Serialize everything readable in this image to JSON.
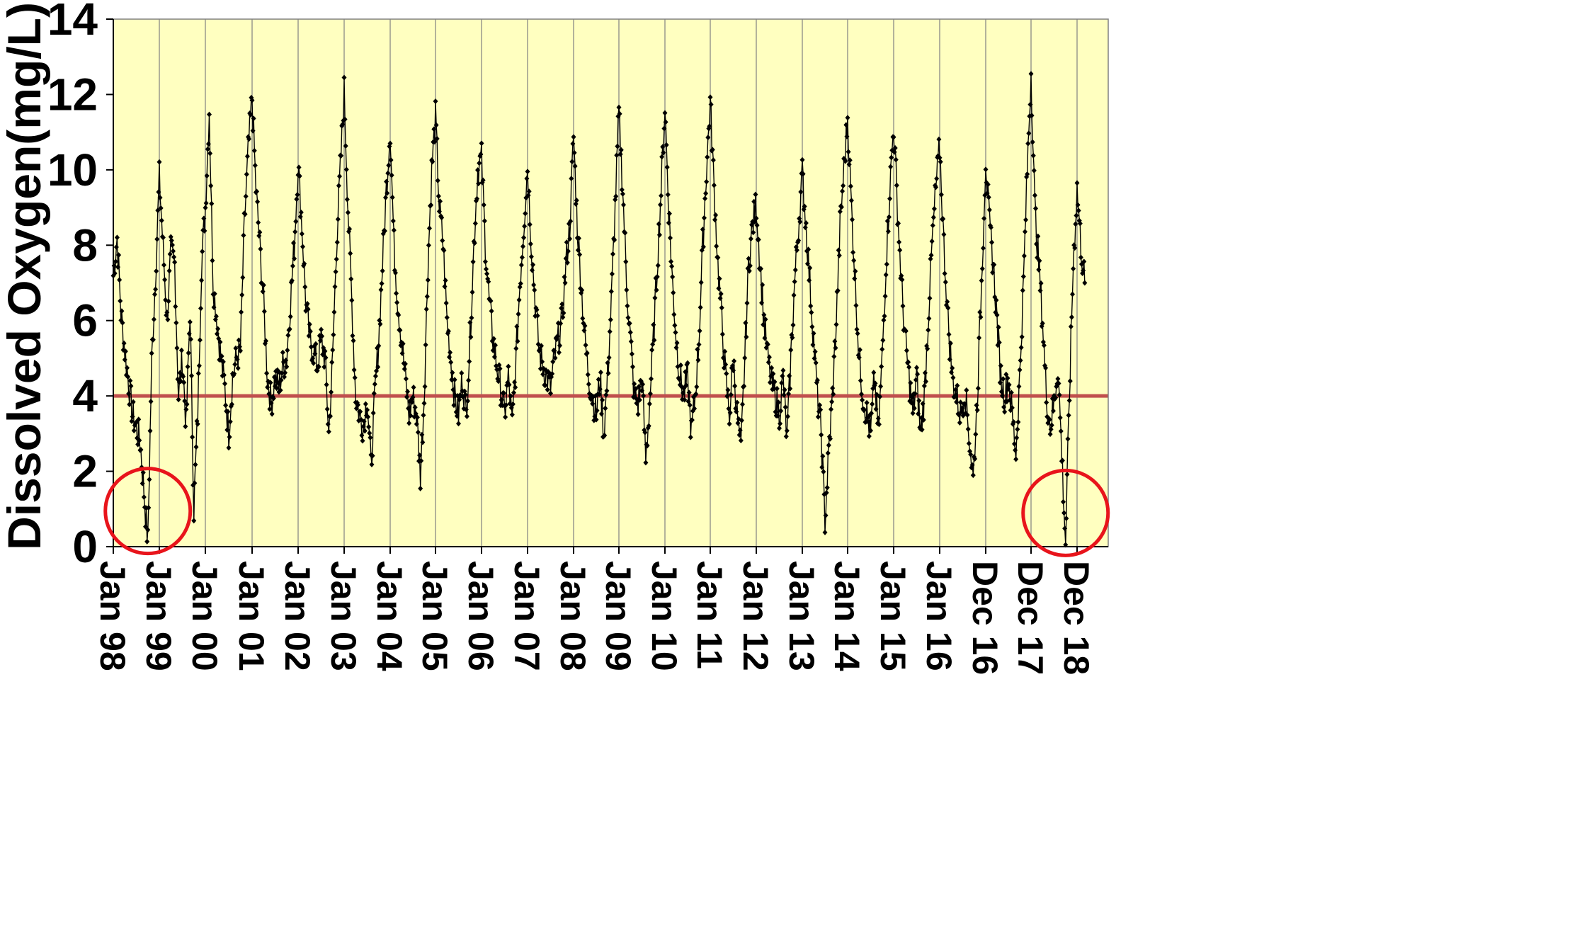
{
  "chart_data": {
    "type": "line",
    "ylabel": "Dissolved Oxygen(mg/L)",
    "xlabel": "",
    "title": "",
    "ylim": [
      0,
      14
    ],
    "yticks": [
      0,
      2,
      4,
      6,
      8,
      10,
      12,
      14
    ],
    "grid": "vertical gridlines at each year tick",
    "x_tick_labels": [
      "Jan 98",
      "Jan 99",
      "Jan 00",
      "Jan 01",
      "Jan 02",
      "Jan 03",
      "Jan 04",
      "Jan 05",
      "Jan 06",
      "Jan 07",
      "Jan 08",
      "Jan 09",
      "Jan 10",
      "Jan 11",
      "Jan 12",
      "Jan 13",
      "Jan 14",
      "Jan 15",
      "Jan 16",
      "Dec 16",
      "Dec 17",
      "Dec 18"
    ],
    "threshold": {
      "value": 4,
      "color": "#c0504d"
    },
    "highlighted_minima": [
      {
        "x": "Oct 98",
        "y": 0.1
      },
      {
        "x": "Sep 18",
        "y": 0.05
      }
    ],
    "series": [
      {
        "marker": "diamond",
        "color": "#000000",
        "description_points": [
          [
            "1998-01",
            7.2
          ],
          [
            "1998-02",
            8.2
          ],
          [
            "1998-03",
            6.2
          ],
          [
            "1998-04",
            5.2
          ],
          [
            "1998-06",
            3.5
          ],
          [
            "1998-08",
            2.8
          ],
          [
            "1998-10",
            0.1
          ],
          [
            "1998-11",
            4.9
          ],
          [
            "1998-12",
            7.2
          ],
          [
            "1999-01",
            9.8
          ],
          [
            "1999-03",
            6.0
          ],
          [
            "1999-04",
            7.8
          ],
          [
            "1999-05",
            7.5
          ],
          [
            "1999-06",
            4.0
          ],
          [
            "1999-07",
            5.0
          ],
          [
            "1999-08",
            3.2
          ],
          [
            "1999-09",
            6.3
          ],
          [
            "1999-10",
            1.0
          ],
          [
            "1999-11",
            3.5
          ],
          [
            "1999-12",
            7.5
          ],
          [
            "2000-01",
            9.0
          ],
          [
            "2000-02",
            11.6
          ],
          [
            "2000-03",
            7.0
          ],
          [
            "2000-04",
            6.0
          ],
          [
            "2000-05",
            5.0
          ],
          [
            "2000-06",
            4.2
          ],
          [
            "2000-07",
            3.0
          ],
          [
            "2000-08",
            4.5
          ],
          [
            "2000-09",
            5.0
          ],
          [
            "2000-10",
            5.2
          ],
          [
            "2000-11",
            8.5
          ],
          [
            "2000-12",
            10.5
          ],
          [
            "2001-01",
            11.9
          ],
          [
            "2001-02",
            9.5
          ],
          [
            "2001-03",
            8.0
          ],
          [
            "2001-04",
            6.5
          ],
          [
            "2001-05",
            4.5
          ],
          [
            "2001-06",
            3.8
          ],
          [
            "2001-07",
            4.5
          ],
          [
            "2001-08",
            4.2
          ],
          [
            "2001-09",
            4.8
          ],
          [
            "2001-10",
            5.0
          ],
          [
            "2001-11",
            6.5
          ],
          [
            "2001-12",
            8.0
          ],
          [
            "2002-01",
            10.2
          ],
          [
            "2002-02",
            8.5
          ],
          [
            "2002-03",
            6.5
          ],
          [
            "2002-04",
            5.5
          ],
          [
            "2002-05",
            5.2
          ],
          [
            "2002-06",
            4.8
          ],
          [
            "2002-07",
            5.5
          ],
          [
            "2002-08",
            5.0
          ],
          [
            "2002-09",
            3.0
          ],
          [
            "2002-10",
            5.0
          ],
          [
            "2002-11",
            8.0
          ],
          [
            "2002-12",
            10.0
          ],
          [
            "2003-01",
            12.1
          ],
          [
            "2003-02",
            9.0
          ],
          [
            "2003-03",
            6.5
          ],
          [
            "2003-04",
            4.0
          ],
          [
            "2003-05",
            3.5
          ],
          [
            "2003-06",
            3.2
          ],
          [
            "2003-07",
            4.0
          ],
          [
            "2003-08",
            2.1
          ],
          [
            "2003-09",
            4.0
          ],
          [
            "2003-10",
            5.5
          ],
          [
            "2003-11",
            7.5
          ],
          [
            "2003-12",
            9.5
          ],
          [
            "2004-01",
            11.1
          ],
          [
            "2004-02",
            8.0
          ],
          [
            "2004-03",
            6.5
          ],
          [
            "2004-04",
            5.5
          ],
          [
            "2004-05",
            4.5
          ],
          [
            "2004-06",
            3.5
          ],
          [
            "2004-07",
            4.0
          ],
          [
            "2004-08",
            3.5
          ],
          [
            "2004-09",
            1.9
          ],
          [
            "2004-10",
            4.0
          ],
          [
            "2004-11",
            7.5
          ],
          [
            "2004-12",
            10.0
          ],
          [
            "2005-01",
            11.4
          ],
          [
            "2005-02",
            9.0
          ],
          [
            "2005-03",
            8.0
          ],
          [
            "2005-04",
            6.0
          ],
          [
            "2005-05",
            5.0
          ],
          [
            "2005-06",
            4.0
          ],
          [
            "2005-07",
            3.5
          ],
          [
            "2005-08",
            4.5
          ],
          [
            "2005-09",
            3.5
          ],
          [
            "2005-10",
            5.5
          ],
          [
            "2005-11",
            8.0
          ],
          [
            "2005-12",
            10.0
          ],
          [
            "2006-01",
            10.3
          ],
          [
            "2006-02",
            8.0
          ],
          [
            "2006-03",
            6.5
          ],
          [
            "2006-04",
            5.5
          ],
          [
            "2006-05",
            4.8
          ],
          [
            "2006-06",
            4.2
          ],
          [
            "2006-07",
            3.5
          ],
          [
            "2006-08",
            4.5
          ],
          [
            "2006-09",
            3.2
          ],
          [
            "2006-10",
            5.0
          ],
          [
            "2006-11",
            7.0
          ],
          [
            "2006-12",
            8.5
          ],
          [
            "2007-01",
            10.1
          ],
          [
            "2007-02",
            8.0
          ],
          [
            "2007-03",
            6.5
          ],
          [
            "2007-04",
            5.2
          ],
          [
            "2007-05",
            4.8
          ],
          [
            "2007-06",
            4.5
          ],
          [
            "2007-07",
            4.2
          ],
          [
            "2007-08",
            5.0
          ],
          [
            "2007-09",
            5.5
          ],
          [
            "2007-10",
            6.0
          ],
          [
            "2007-11",
            7.5
          ],
          [
            "2007-12",
            8.5
          ],
          [
            "2008-01",
            10.9
          ],
          [
            "2008-02",
            8.5
          ],
          [
            "2008-03",
            7.0
          ],
          [
            "2008-04",
            5.5
          ],
          [
            "2008-05",
            4.5
          ],
          [
            "2008-06",
            4.0
          ],
          [
            "2008-07",
            3.5
          ],
          [
            "2008-08",
            4.5
          ],
          [
            "2008-09",
            3.0
          ],
          [
            "2008-10",
            4.5
          ],
          [
            "2008-11",
            6.5
          ],
          [
            "2008-12",
            9.0
          ],
          [
            "2009-01",
            11.5
          ],
          [
            "2009-02",
            9.5
          ],
          [
            "2009-03",
            7.0
          ],
          [
            "2009-04",
            5.5
          ],
          [
            "2009-05",
            4.0
          ],
          [
            "2009-06",
            3.8
          ],
          [
            "2009-07",
            4.5
          ],
          [
            "2009-08",
            2.3
          ],
          [
            "2009-09",
            3.8
          ],
          [
            "2009-10",
            5.5
          ],
          [
            "2009-11",
            7.5
          ],
          [
            "2009-12",
            9.5
          ],
          [
            "2010-01",
            11.7
          ],
          [
            "2010-02",
            9.0
          ],
          [
            "2010-03",
            7.0
          ],
          [
            "2010-04",
            5.5
          ],
          [
            "2010-05",
            4.5
          ],
          [
            "2010-06",
            4.0
          ],
          [
            "2010-07",
            4.5
          ],
          [
            "2010-08",
            3.0
          ],
          [
            "2010-09",
            4.0
          ],
          [
            "2010-10",
            5.5
          ],
          [
            "2010-11",
            8.0
          ],
          [
            "2010-12",
            10.0
          ],
          [
            "2011-01",
            11.8
          ],
          [
            "2011-02",
            9.5
          ],
          [
            "2011-03",
            7.5
          ],
          [
            "2011-04",
            6.0
          ],
          [
            "2011-05",
            4.5
          ],
          [
            "2011-06",
            3.5
          ],
          [
            "2011-07",
            5.0
          ],
          [
            "2011-08",
            3.5
          ],
          [
            "2011-09",
            2.5
          ],
          [
            "2011-10",
            5.0
          ],
          [
            "2011-11",
            7.5
          ],
          [
            "2011-12",
            8.5
          ],
          [
            "2012-01",
            9.1
          ],
          [
            "2012-02",
            7.5
          ],
          [
            "2012-03",
            6.0
          ],
          [
            "2012-04",
            5.0
          ],
          [
            "2012-05",
            4.3
          ],
          [
            "2012-06",
            4.0
          ],
          [
            "2012-07",
            3.5
          ],
          [
            "2012-08",
            4.5
          ],
          [
            "2012-09",
            2.8
          ],
          [
            "2012-10",
            5.0
          ],
          [
            "2012-11",
            7.0
          ],
          [
            "2012-12",
            8.5
          ],
          [
            "2013-01",
            9.9
          ],
          [
            "2013-02",
            8.5
          ],
          [
            "2013-03",
            7.0
          ],
          [
            "2013-04",
            5.5
          ],
          [
            "2013-05",
            4.0
          ],
          [
            "2013-06",
            3.0
          ],
          [
            "2013-07",
            0.7
          ],
          [
            "2013-08",
            2.5
          ],
          [
            "2013-09",
            4.0
          ],
          [
            "2013-10",
            6.0
          ],
          [
            "2013-11",
            8.5
          ],
          [
            "2013-12",
            10.0
          ],
          [
            "2014-01",
            11.4
          ],
          [
            "2014-02",
            9.0
          ],
          [
            "2014-03",
            7.0
          ],
          [
            "2014-04",
            5.0
          ],
          [
            "2014-05",
            4.0
          ],
          [
            "2014-06",
            3.5
          ],
          [
            "2014-07",
            3.0
          ],
          [
            "2014-08",
            4.5
          ],
          [
            "2014-09",
            3.0
          ],
          [
            "2014-10",
            5.0
          ],
          [
            "2014-11",
            7.5
          ],
          [
            "2014-12",
            9.5
          ],
          [
            "2015-01",
            11.2
          ],
          [
            "2015-02",
            9.0
          ],
          [
            "2015-03",
            7.0
          ],
          [
            "2015-04",
            5.5
          ],
          [
            "2015-05",
            4.5
          ],
          [
            "2015-06",
            3.5
          ],
          [
            "2015-07",
            4.5
          ],
          [
            "2015-08",
            3.0
          ],
          [
            "2015-09",
            4.0
          ],
          [
            "2015-10",
            6.0
          ],
          [
            "2015-11",
            8.0
          ],
          [
            "2015-12",
            9.5
          ],
          [
            "2016-01",
            10.6
          ],
          [
            "2016-02",
            8.0
          ],
          [
            "2016-03",
            6.0
          ],
          [
            "2016-04",
            4.5
          ],
          [
            "2016-05",
            4.0
          ],
          [
            "2016-06",
            3.5
          ],
          [
            "2016-07",
            4.2
          ],
          [
            "2016-08",
            3.0
          ],
          [
            "2016-09",
            1.8
          ],
          [
            "2016-10",
            4.0
          ],
          [
            "2016-11",
            7.0
          ],
          [
            "2016-12",
            10.3
          ],
          [
            "2017-01",
            8.5
          ],
          [
            "2017-02",
            7.5
          ],
          [
            "2017-03",
            6.0
          ],
          [
            "2017-04",
            4.5
          ],
          [
            "2017-05",
            4.0
          ],
          [
            "2017-06",
            4.5
          ],
          [
            "2017-07",
            3.5
          ],
          [
            "2017-08",
            2.5
          ],
          [
            "2017-09",
            4.5
          ],
          [
            "2017-10",
            7.0
          ],
          [
            "2017-11",
            10.0
          ],
          [
            "2017-12",
            12.6
          ],
          [
            "2018-01",
            9.0
          ],
          [
            "2018-02",
            7.5
          ],
          [
            "2018-03",
            6.0
          ],
          [
            "2018-04",
            4.0
          ],
          [
            "2018-05",
            3.2
          ],
          [
            "2018-06",
            3.8
          ],
          [
            "2018-07",
            4.8
          ],
          [
            "2018-08",
            2.5
          ],
          [
            "2018-09",
            0.05
          ],
          [
            "2018-10",
            4.0
          ],
          [
            "2018-11",
            7.5
          ],
          [
            "2018-12",
            9.5
          ],
          [
            "2019-01",
            8.0
          ],
          [
            "2019-02",
            7.0
          ]
        ]
      }
    ]
  }
}
